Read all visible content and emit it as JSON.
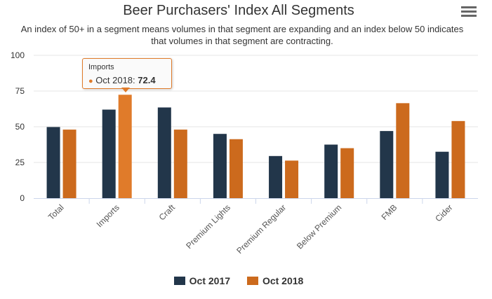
{
  "header": {
    "title": "Beer Purchasers' Index All Segments",
    "subtitle": "An index of 50+ in a segment means volumes in that segment are expanding and an index below 50 indicates that volumes in that segment are contracting.",
    "menu_icon": "hamburger-menu-icon"
  },
  "tooltip": {
    "category": "Imports",
    "series_name": "Oct 2018",
    "value_text": "72.4"
  },
  "colors": {
    "oct_2017": "#22364a",
    "oct_2018": "#cc6a1d",
    "oct_2018_hover": "#e07b2a",
    "grid": "#e6e6e6",
    "axis": "#ccd6eb"
  },
  "chart_data": {
    "type": "bar",
    "title": "Beer Purchasers' Index All Segments",
    "subtitle": "An index of 50+ in a segment means volumes in that segment are expanding and an index below 50 indicates that volumes in that segment are contracting.",
    "categories": [
      "Total",
      "Imports",
      "Craft",
      "Premium Lights",
      "Premium Regular",
      "Below Premium",
      "FMB",
      "Cider"
    ],
    "series": [
      {
        "name": "Oct 2017",
        "values": [
          49.8,
          62,
          63.5,
          45,
          29.5,
          37.5,
          47,
          32.5
        ]
      },
      {
        "name": "Oct 2018",
        "values": [
          48,
          72.4,
          48,
          41.3,
          26.3,
          35,
          66.5,
          54
        ]
      }
    ],
    "ylim": [
      0,
      100
    ],
    "yticks": [
      "0",
      "25",
      "50",
      "75",
      "100"
    ],
    "grid": true,
    "legend": "bottom-center",
    "highlighted": {
      "category": "Imports",
      "series": "Oct 2018"
    }
  }
}
